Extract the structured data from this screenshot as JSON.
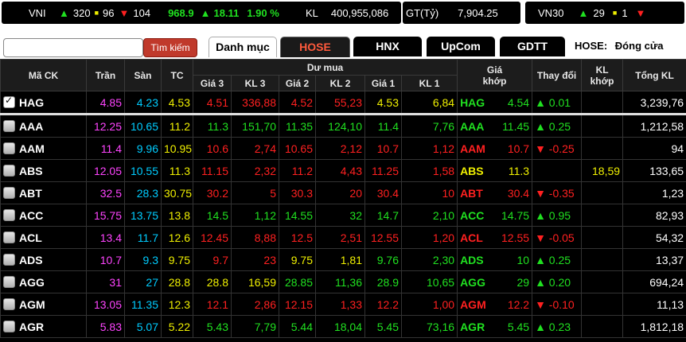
{
  "index_bar": {
    "vni": {
      "name": "VNI",
      "up": "320",
      "flat": "96",
      "down": "104",
      "value": "968.9",
      "change": "18.11",
      "pct": "1.90 %"
    },
    "kl_label": "KL",
    "kl_value": "400,955,086",
    "gt_label": "GT(Tỷ)",
    "gt_value": "7,904.25",
    "vn30": {
      "name": "VN30",
      "up": "29",
      "flat": "1",
      "down": ""
    }
  },
  "toolbar": {
    "search_placeholder": "",
    "search_button": "Tìm kiếm",
    "tabs": [
      "Danh mục",
      "HOSE",
      "HNX",
      "UpCom",
      "GDTT"
    ],
    "status_label": "HOSE:",
    "status_value": "Đóng cửa"
  },
  "headers": {
    "symbol": "Mã CK",
    "ceil": "Trần",
    "floor": "Sàn",
    "ref": "TC",
    "bid_group": "Dư mua",
    "g3": "Giá 3",
    "kl3": "KL 3",
    "g2": "Giá 2",
    "kl2": "KL 2",
    "g1": "Giá 1",
    "kl1": "KL 1",
    "match_price_1": "Giá",
    "match_price_2": "khớp",
    "change": "Thay đổi",
    "match_vol_1": "KL",
    "match_vol_2": "khớp",
    "total": "Tổng KL"
  },
  "rows": [
    {
      "sym": "HAG",
      "checked": true,
      "ceil": "4.85",
      "floor": "4.23",
      "ref": "4.53",
      "g3": "4.51",
      "kl3": "336,88",
      "g2": "4.52",
      "kl2": "55,23",
      "g1": "4.53",
      "kl1": "6,84",
      "c3": "r",
      "c2": "r",
      "c1": "y",
      "msym": "HAG",
      "mprice": "4.54",
      "mc": "g",
      "chg": "▲ 0.01",
      "mvol": "",
      "total": "3,239,76"
    },
    {
      "sym": "AAA",
      "checked": false,
      "ceil": "12.25",
      "floor": "10.65",
      "ref": "11.2",
      "g3": "11.3",
      "kl3": "151,70",
      "g2": "11.35",
      "kl2": "124,10",
      "g1": "11.4",
      "kl1": "7,76",
      "c3": "g",
      "c2": "g",
      "c1": "g",
      "msym": "AAA",
      "mprice": "11.45",
      "mc": "g",
      "chg": "▲ 0.25",
      "mvol": "",
      "total": "1,212,58"
    },
    {
      "sym": "AAM",
      "checked": false,
      "ceil": "11.4",
      "floor": "9.96",
      "ref": "10.95",
      "g3": "10.6",
      "kl3": "2,74",
      "g2": "10.65",
      "kl2": "2,12",
      "g1": "10.7",
      "kl1": "1,12",
      "c3": "r",
      "c2": "r",
      "c1": "r",
      "msym": "AAM",
      "mprice": "10.7",
      "mc": "r",
      "chg": "▼ -0.25",
      "mvol": "",
      "total": "94"
    },
    {
      "sym": "ABS",
      "checked": false,
      "ceil": "12.05",
      "floor": "10.55",
      "ref": "11.3",
      "g3": "11.15",
      "kl3": "2,32",
      "g2": "11.2",
      "kl2": "4,43",
      "g1": "11.25",
      "kl1": "1,58",
      "c3": "r",
      "c2": "r",
      "c1": "r",
      "msym": "ABS",
      "mprice": "11.3",
      "mc": "y",
      "chg": "",
      "mvol": "18,59",
      "total": "133,65"
    },
    {
      "sym": "ABT",
      "checked": false,
      "ceil": "32.5",
      "floor": "28.3",
      "ref": "30.75",
      "g3": "30.2",
      "kl3": "5",
      "g2": "30.3",
      "kl2": "20",
      "g1": "30.4",
      "kl1": "10",
      "c3": "r",
      "c2": "r",
      "c1": "r",
      "msym": "ABT",
      "mprice": "30.4",
      "mc": "r",
      "chg": "▼ -0.35",
      "mvol": "",
      "total": "1,23"
    },
    {
      "sym": "ACC",
      "checked": false,
      "ceil": "15.75",
      "floor": "13.75",
      "ref": "13.8",
      "g3": "14.5",
      "kl3": "1,12",
      "g2": "14.55",
      "kl2": "32",
      "g1": "14.7",
      "kl1": "2,10",
      "c3": "g",
      "c2": "g",
      "c1": "g",
      "msym": "ACC",
      "mprice": "14.75",
      "mc": "g",
      "chg": "▲ 0.95",
      "mvol": "",
      "total": "82,93"
    },
    {
      "sym": "ACL",
      "checked": false,
      "ceil": "13.4",
      "floor": "11.7",
      "ref": "12.6",
      "g3": "12.45",
      "kl3": "8,88",
      "g2": "12.5",
      "kl2": "2,51",
      "g1": "12.55",
      "kl1": "1,20",
      "c3": "r",
      "c2": "r",
      "c1": "r",
      "msym": "ACL",
      "mprice": "12.55",
      "mc": "r",
      "chg": "▼ -0.05",
      "mvol": "",
      "total": "54,32"
    },
    {
      "sym": "ADS",
      "checked": false,
      "ceil": "10.7",
      "floor": "9.3",
      "ref": "9.75",
      "g3": "9.7",
      "kl3": "23",
      "g2": "9.75",
      "kl2": "1,81",
      "g1": "9.76",
      "kl1": "2,30",
      "c3": "r",
      "c2": "y",
      "c1": "g",
      "msym": "ADS",
      "mprice": "10",
      "mc": "g",
      "chg": "▲ 0.25",
      "mvol": "",
      "total": "13,37"
    },
    {
      "sym": "AGG",
      "checked": false,
      "ceil": "31",
      "floor": "27",
      "ref": "28.8",
      "g3": "28.8",
      "kl3": "16,59",
      "g2": "28.85",
      "kl2": "11,36",
      "g1": "28.9",
      "kl1": "10,65",
      "c3": "y",
      "c2": "g",
      "c1": "g",
      "msym": "AGG",
      "mprice": "29",
      "mc": "g",
      "chg": "▲ 0.20",
      "mvol": "",
      "total": "694,24"
    },
    {
      "sym": "AGM",
      "checked": false,
      "ceil": "13.05",
      "floor": "11.35",
      "ref": "12.3",
      "g3": "12.1",
      "kl3": "2,86",
      "g2": "12.15",
      "kl2": "1,33",
      "g1": "12.2",
      "kl1": "1,00",
      "c3": "r",
      "c2": "r",
      "c1": "r",
      "msym": "AGM",
      "mprice": "12.2",
      "mc": "r",
      "chg": "▼ -0.10",
      "mvol": "",
      "total": "11,13"
    },
    {
      "sym": "AGR",
      "checked": false,
      "ceil": "5.83",
      "floor": "5.07",
      "ref": "5.22",
      "g3": "5.43",
      "kl3": "7,79",
      "g2": "5.44",
      "kl2": "18,04",
      "g1": "5.45",
      "kl1": "73,16",
      "c3": "g",
      "c2": "g",
      "c1": "g",
      "msym": "AGR",
      "mprice": "5.45",
      "mc": "g",
      "chg": "▲ 0.23",
      "mvol": "",
      "total": "1,812,18"
    }
  ]
}
